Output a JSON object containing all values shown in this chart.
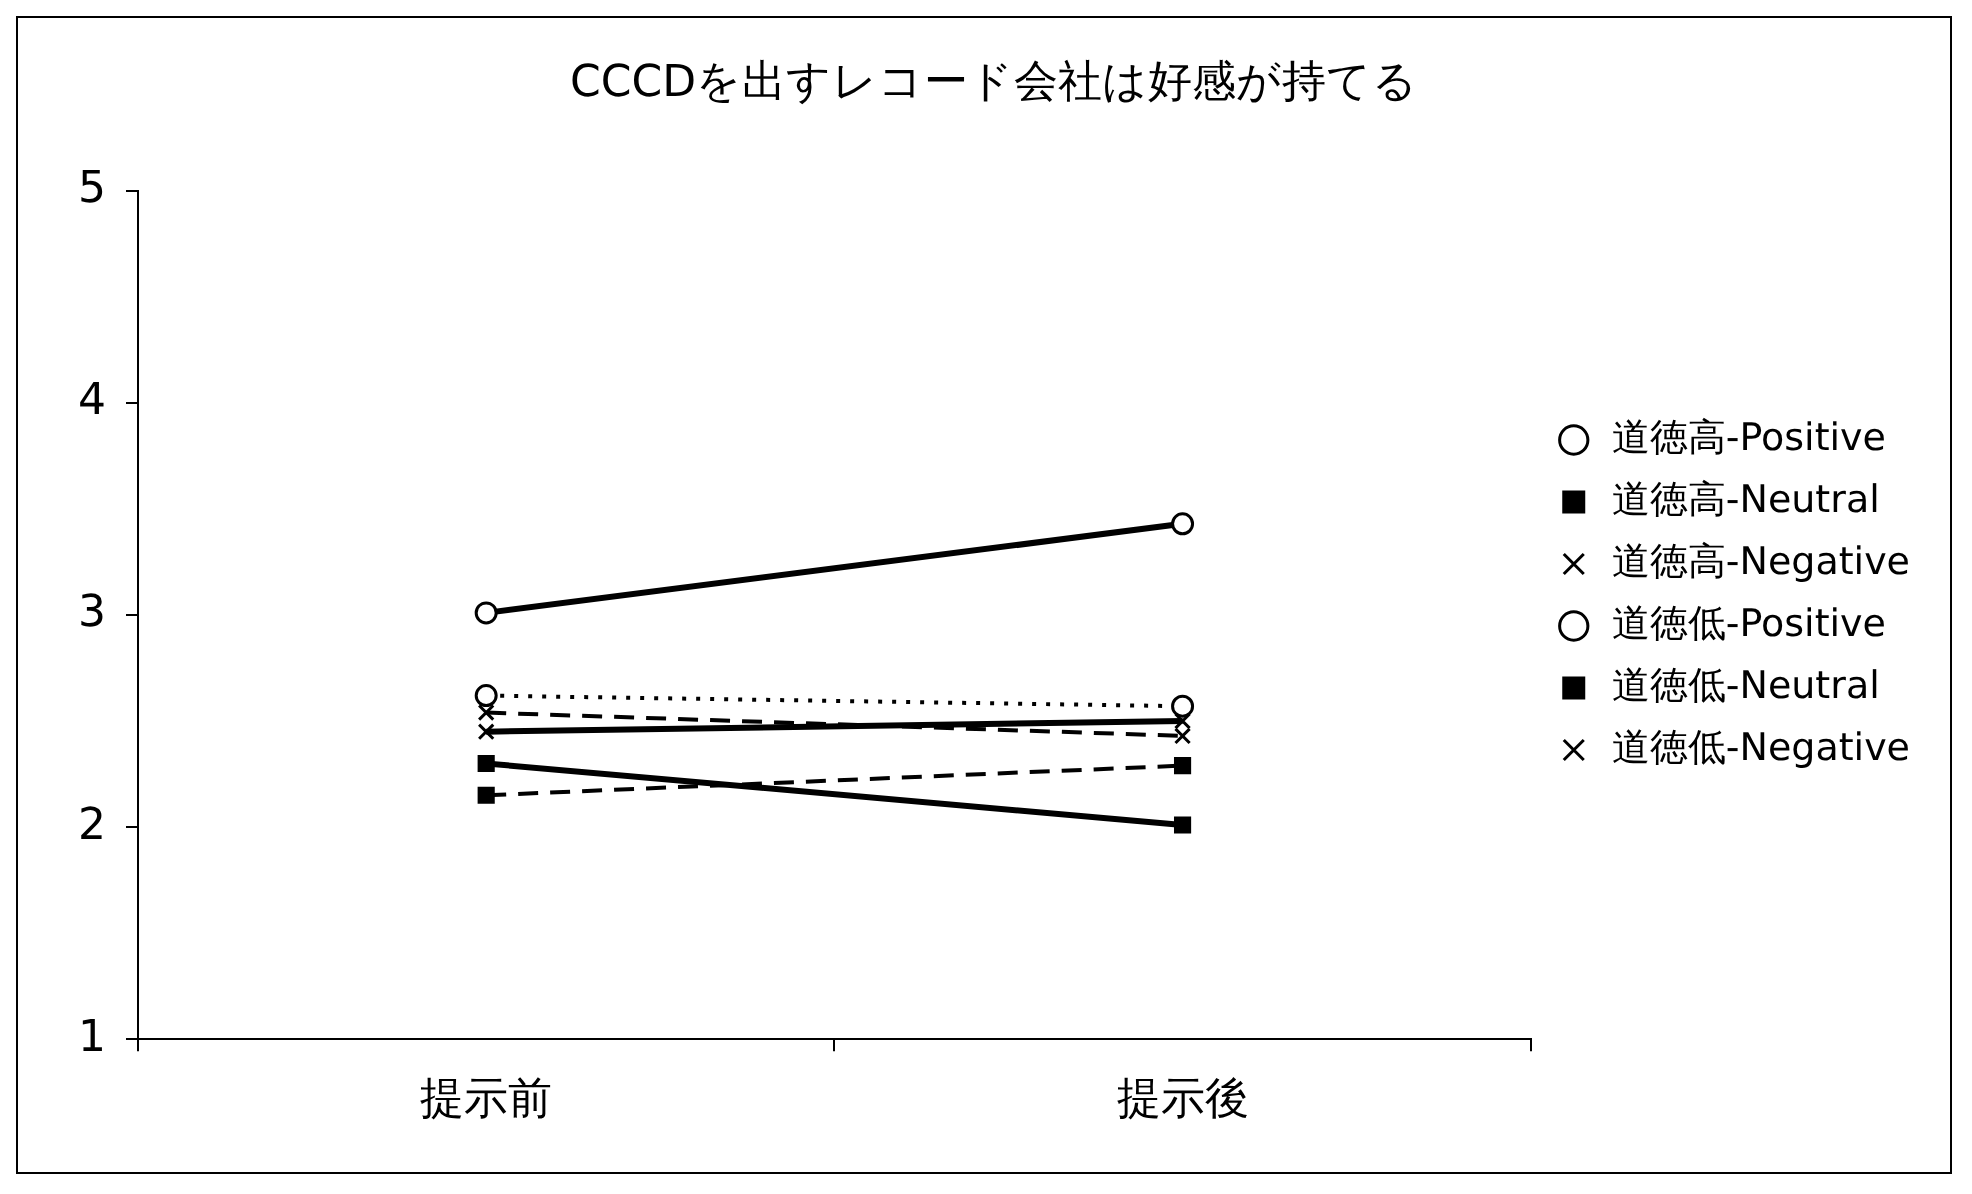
{
  "chart_data": {
    "type": "line",
    "title": "CCCDを出すレコード会社は好感が持てる",
    "categories": [
      "提示前",
      "提示後"
    ],
    "series": [
      {
        "name": "道徳高-Positive",
        "color": "#000000",
        "values": [
          3.01,
          3.43
        ],
        "marker": "circle",
        "line_style": "solid"
      },
      {
        "name": "道徳高-Neutral",
        "color": "#000000",
        "values": [
          2.3,
          2.01
        ],
        "marker": "square",
        "line_style": "solid"
      },
      {
        "name": "道徳高-Negative",
        "color": "#000000",
        "values": [
          2.45,
          2.5
        ],
        "marker": "cross",
        "line_style": "solid"
      },
      {
        "name": "道徳低-Positive",
        "color": "#000000",
        "values": [
          2.62,
          2.57
        ],
        "marker": "circle",
        "line_style": "dotted"
      },
      {
        "name": "道徳低-Neutral",
        "color": "#000000",
        "values": [
          2.15,
          2.29
        ],
        "marker": "square",
        "line_style": "dashed"
      },
      {
        "name": "道徳低-Negative",
        "color": "#000000",
        "values": [
          2.54,
          2.43
        ],
        "marker": "cross",
        "line_style": "dashed"
      }
    ],
    "ylim": [
      1,
      5
    ],
    "yticks": [
      1,
      2,
      3,
      4,
      5
    ],
    "grid": false,
    "legend": "right"
  }
}
